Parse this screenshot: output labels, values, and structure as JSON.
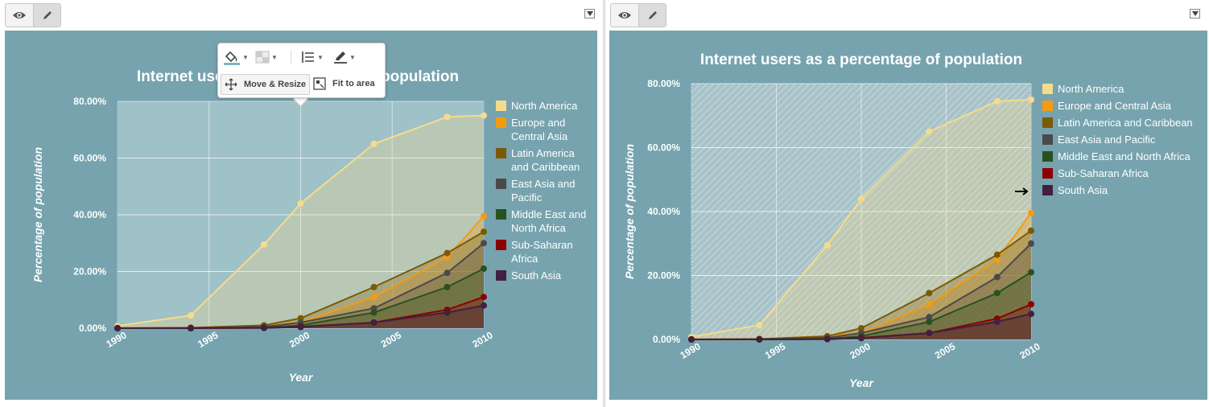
{
  "panels": [
    {
      "view_label": "View",
      "edit_label": "Edit"
    },
    {
      "view_label": "View",
      "edit_label": "Edit"
    }
  ],
  "toolbar": {
    "move_resize_label": "Move & Resize",
    "fit_to_area_label": "Fit to area",
    "icons": [
      "fill-color-icon",
      "background-pattern-icon",
      "line-style-icon",
      "pencil-icon"
    ]
  },
  "chart_data": [
    {
      "type": "area",
      "title": "Internet users as a percentage of population",
      "xlabel": "Year",
      "ylabel": "Percentage of population",
      "x": [
        1990,
        1994,
        1998,
        2000,
        2004,
        2008,
        2010
      ],
      "x_ticks": [
        "1990",
        "1995",
        "2000",
        "2005",
        "2010"
      ],
      "y_ticks": [
        "0.00%",
        "20.00%",
        "40.00%",
        "60.00%",
        "80.00%"
      ],
      "ylim": [
        0,
        80
      ],
      "legend_position": "right",
      "series": [
        {
          "name": "North America",
          "color": "#f5dc8c",
          "values": [
            0.8,
            4.5,
            29.5,
            44,
            65,
            74.5,
            75
          ]
        },
        {
          "name": "Europe and Central Asia",
          "color": "#f39c12",
          "values": [
            0.1,
            0.2,
            1,
            2,
            11,
            25,
            39.5
          ]
        },
        {
          "name": "Latin America and Caribbean",
          "color": "#7a5a05",
          "values": [
            0,
            0.1,
            1,
            3.5,
            14.5,
            26.5,
            34
          ]
        },
        {
          "name": "East Asia and Pacific",
          "color": "#4a4a4a",
          "values": [
            0,
            0.1,
            0.5,
            2,
            7,
            19.5,
            30
          ]
        },
        {
          "name": "Middle East and North Africa",
          "color": "#275220",
          "values": [
            0,
            0,
            0.2,
            1,
            5.5,
            14.5,
            21
          ]
        },
        {
          "name": "Sub-Saharan Africa",
          "color": "#8b0000",
          "values": [
            0,
            0,
            0.1,
            0.5,
            2,
            6.5,
            11
          ]
        },
        {
          "name": "South Asia",
          "color": "#42203f",
          "values": [
            0,
            0,
            0.1,
            0.4,
            2,
            5.5,
            8
          ]
        }
      ]
    },
    {
      "type": "area",
      "title": "Internet users as a percentage of population",
      "xlabel": "Year",
      "ylabel": "Percentage of population",
      "x": [
        1990,
        1994,
        1998,
        2000,
        2004,
        2008,
        2010
      ],
      "x_ticks": [
        "1990",
        "1995",
        "2000",
        "2005",
        "2010"
      ],
      "y_ticks": [
        "0.00%",
        "20.00%",
        "40.00%",
        "60.00%",
        "80.00%"
      ],
      "ylim": [
        0,
        80
      ],
      "legend_position": "right",
      "series": [
        {
          "name": "North America",
          "color": "#f5dc8c",
          "values": [
            0.8,
            4.5,
            29.5,
            44,
            65,
            74.5,
            75
          ]
        },
        {
          "name": "Europe and Central Asia",
          "color": "#f39c12",
          "values": [
            0.1,
            0.2,
            1,
            2,
            11,
            25,
            39.5
          ]
        },
        {
          "name": "Latin America and Caribbean",
          "color": "#7a5a05",
          "values": [
            0,
            0.1,
            1,
            3.5,
            14.5,
            26.5,
            34
          ]
        },
        {
          "name": "East Asia and Pacific",
          "color": "#4a4a4a",
          "values": [
            0,
            0.1,
            0.5,
            2,
            7,
            19.5,
            30
          ]
        },
        {
          "name": "Middle East and North Africa",
          "color": "#275220",
          "values": [
            0,
            0,
            0.2,
            1,
            5.5,
            14.5,
            21
          ]
        },
        {
          "name": "Sub-Saharan Africa",
          "color": "#8b0000",
          "values": [
            0,
            0,
            0.1,
            0.5,
            2,
            6.5,
            11
          ]
        },
        {
          "name": "South Asia",
          "color": "#42203f",
          "values": [
            0,
            0,
            0.1,
            0.4,
            2,
            5.5,
            8
          ]
        }
      ]
    }
  ]
}
